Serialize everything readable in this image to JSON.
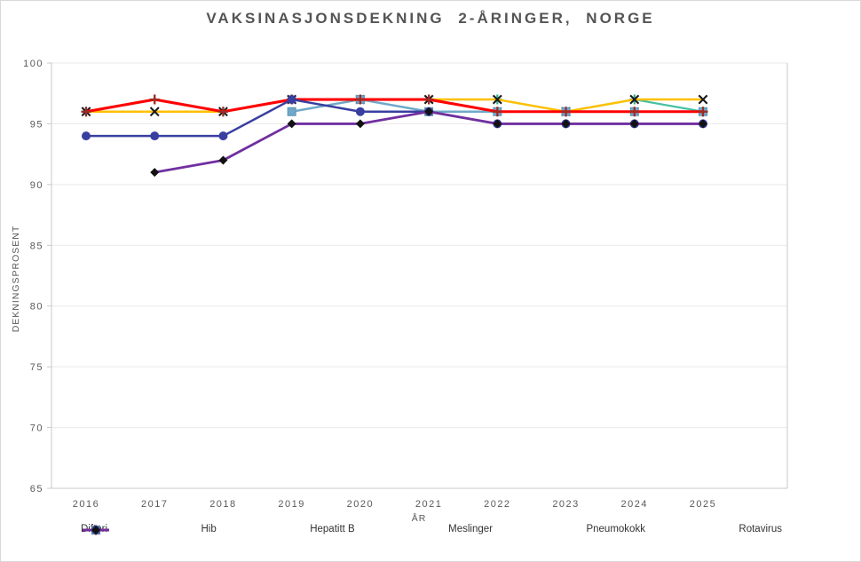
{
  "title": "VAKSINASJONSDEKNING 2-ÅRINGER, NORGE",
  "chart_data": {
    "type": "line",
    "x": [
      "2016",
      "2017",
      "2018",
      "2019",
      "2020",
      "2021",
      "2022",
      "2023",
      "2024",
      "2025"
    ],
    "xlabel": "ÅR",
    "ylabel": "DEKNINGSPROSENT",
    "ylim": [
      65,
      100
    ],
    "ytick_step": 5,
    "yticks": [
      65,
      70,
      75,
      80,
      85,
      90,
      95,
      100
    ],
    "grid": true,
    "legend_position": "bottom",
    "series": [
      {
        "name": "Difteri",
        "color": "#45C0A3",
        "marker": "plus",
        "marker_color": "#2FAE90",
        "line_width": 2.2,
        "values": [
          96,
          97,
          96,
          97,
          97,
          97,
          97,
          96,
          97,
          96
        ]
      },
      {
        "name": "Hib",
        "color": "#FFC000",
        "marker": "x",
        "marker_color": "#1A1A1A",
        "line_width": 2.5,
        "values": [
          96,
          96,
          96,
          97,
          97,
          97,
          97,
          96,
          97,
          97
        ]
      },
      {
        "name": "Hepatitt B",
        "color": "#6FA8C9",
        "marker": "square",
        "marker_color": "#6FA8C9",
        "line_width": 2.5,
        "values": [
          null,
          null,
          null,
          96,
          97,
          96,
          96,
          96,
          96,
          96
        ]
      },
      {
        "name": "Meslinger",
        "color": "#FF0000",
        "marker": "plus",
        "marker_color": "#9E2B25",
        "line_width": 3.1,
        "values": [
          96,
          97,
          96,
          97,
          97,
          97,
          96,
          96,
          96,
          96
        ]
      },
      {
        "name": "Pneumokokk",
        "color": "#383FA0",
        "marker": "circle",
        "marker_color": "#383FA0",
        "line_width": 2.5,
        "values": [
          94,
          94,
          94,
          97,
          96,
          96,
          95,
          95,
          95,
          95
        ]
      },
      {
        "name": "Rotavirus",
        "color": "#7030A0",
        "marker": "diamond",
        "marker_color": "#121212",
        "line_width": 2.8,
        "values": [
          null,
          91,
          92,
          95,
          95,
          96,
          95,
          95,
          95,
          95
        ]
      }
    ]
  },
  "colors": {
    "grid": "#e9e9e9",
    "axis": "#c9c9c9",
    "tick_text": "#595959",
    "title_text": "#545454"
  }
}
